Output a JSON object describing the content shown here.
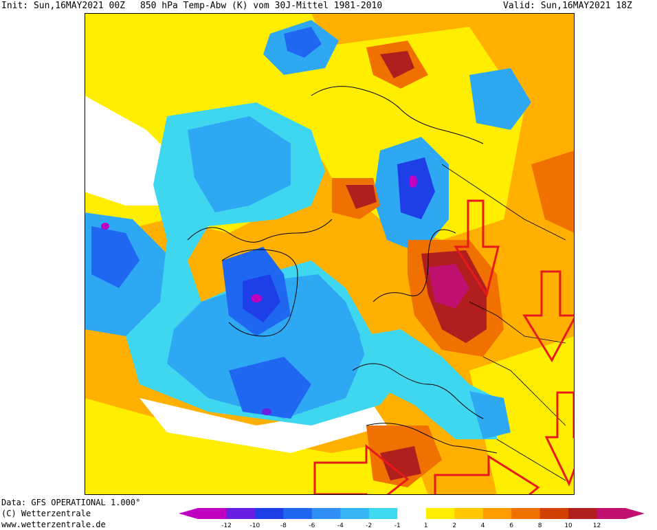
{
  "header": {
    "init": "Init: Sun,16MAY2021 00Z",
    "title": "850 hPa Temp-Abw (K) vom 30J-Mittel 1981-2010",
    "valid": "Valid: Sun,16MAY2021 18Z"
  },
  "footer": {
    "data_source": "Data: GFS OPERATIONAL 1.000°",
    "copyright": "(C) Wetterzentrale",
    "url": "www.wetterzentrale.de"
  },
  "legend": {
    "ticks": [
      "-12",
      "-10",
      "-8",
      "-6",
      "-4",
      "-2",
      "-1",
      "1",
      "2",
      "4",
      "6",
      "8",
      "10",
      "12"
    ],
    "colors": [
      "#c000c0",
      "#6a1fe0",
      "#1e3ee8",
      "#1f66f0",
      "#2f8ff5",
      "#35b5f5",
      "#3fdaf0",
      "#ffffff",
      "#ffee00",
      "#ffc800",
      "#ff9c00",
      "#f07000",
      "#d04000",
      "#b01e1e",
      "#c01070"
    ]
  },
  "map_colors": {
    "strong_cold": "#c000c0",
    "cold": "#1e5fe8",
    "cool": "#2fa8f4",
    "mild_cool": "#3fd6f0",
    "neutral": "#ffffff",
    "mild_warm": "#ffee00",
    "warm": "#ffb000",
    "hot": "#f07000",
    "very_hot": "#b01e1e",
    "extreme": "#c01070",
    "annotation": "#e8191b"
  },
  "annotations": {
    "arrow_count": 6,
    "arrow_color": "#e8191b"
  }
}
